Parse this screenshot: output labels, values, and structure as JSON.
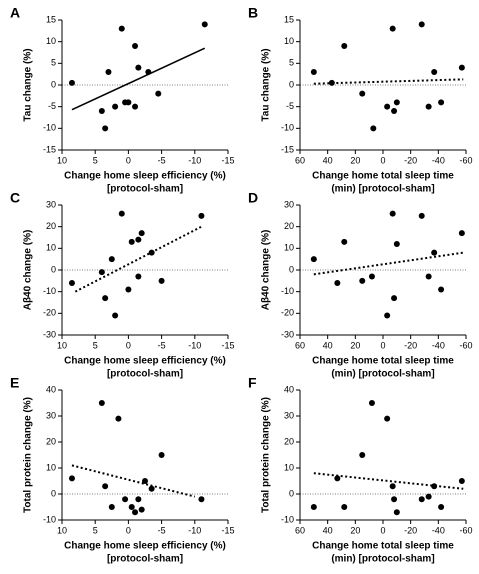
{
  "chart_data": [
    {
      "type": "scatter",
      "label": "A",
      "ylabel": "Tau change (%)",
      "xlabel": [
        "Change home sleep efficiency (%)",
        "[protocol-sham]"
      ],
      "xlim": [
        10,
        -15
      ],
      "xticks": [
        10,
        5,
        0,
        -5,
        -10,
        -15
      ],
      "ylim": [
        -15,
        15
      ],
      "yticks": [
        -15,
        -10,
        -5,
        0,
        5,
        10,
        15
      ],
      "color": "#000000",
      "x": [
        8.5,
        4,
        3.5,
        3,
        2,
        1,
        0.5,
        0,
        -1,
        -1,
        -1.5,
        -3,
        -4.5,
        -11.5
      ],
      "y": [
        0.5,
        -6,
        -10,
        3,
        -5,
        13,
        -4,
        -4,
        -5,
        9,
        4,
        3,
        -2,
        14
      ],
      "fit": {
        "x": [
          8.5,
          -11.5
        ],
        "y": [
          -5.7,
          8.5
        ],
        "dashed": false
      }
    },
    {
      "type": "scatter",
      "label": "B",
      "ylabel": "Tau change (%)",
      "xlabel": [
        "Change home total sleep time",
        "(min) [protocol-sham]"
      ],
      "xlim": [
        60,
        -60
      ],
      "xticks": [
        60,
        40,
        20,
        0,
        -20,
        -40,
        -60
      ],
      "ylim": [
        -15,
        15
      ],
      "yticks": [
        -15,
        -10,
        -5,
        0,
        5,
        10,
        15
      ],
      "color": "#000000",
      "x": [
        50,
        37,
        28,
        15,
        7,
        -3,
        -7,
        -8,
        -10,
        -28,
        -33,
        -37,
        -42,
        -57
      ],
      "y": [
        3,
        0.5,
        9,
        -2,
        -10,
        -5,
        13,
        -6,
        -4,
        14,
        -5,
        3,
        -4,
        4
      ],
      "fit": {
        "x": [
          50,
          -58
        ],
        "y": [
          0.3,
          1.3
        ],
        "dashed": true
      }
    },
    {
      "type": "scatter",
      "label": "C",
      "ylabel": "Aβ40 change (%)",
      "xlabel": [
        "Change home sleep efficiency (%)",
        "[protocol-sham]"
      ],
      "xlim": [
        10,
        -15
      ],
      "xticks": [
        10,
        5,
        0,
        -5,
        -10,
        -15
      ],
      "ylim": [
        -30,
        30
      ],
      "yticks": [
        -30,
        -20,
        -10,
        0,
        10,
        20,
        30
      ],
      "color": "#000000",
      "x": [
        8.5,
        4,
        3.5,
        2.5,
        2,
        1,
        0,
        -0.5,
        -1.5,
        -1.5,
        -2,
        -3.5,
        -5,
        -11
      ],
      "y": [
        -6,
        -1,
        -13,
        5,
        -21,
        26,
        -9,
        13,
        -3,
        14,
        17,
        8,
        -5,
        25
      ],
      "fit": {
        "x": [
          8,
          -11
        ],
        "y": [
          -10,
          20
        ],
        "dashed": true
      }
    },
    {
      "type": "scatter",
      "label": "D",
      "ylabel": "Aβ40 change (%)",
      "xlabel": [
        "Change home total sleep time",
        "(min) [protocol-sham]"
      ],
      "xlim": [
        60,
        -60
      ],
      "xticks": [
        60,
        40,
        20,
        0,
        -20,
        -40,
        -60
      ],
      "ylim": [
        -30,
        30
      ],
      "yticks": [
        -30,
        -20,
        -10,
        0,
        10,
        20,
        30
      ],
      "color": "#000000",
      "x": [
        50,
        33,
        28,
        15,
        8,
        -3,
        -7,
        -8,
        -10,
        -28,
        -33,
        -37,
        -42,
        -57
      ],
      "y": [
        5,
        -6,
        13,
        -5,
        -3,
        -21,
        26,
        -13,
        12,
        25,
        -3,
        8,
        -9,
        17
      ],
      "fit": {
        "x": [
          50,
          -58
        ],
        "y": [
          -2,
          8
        ],
        "dashed": true
      }
    },
    {
      "type": "scatter",
      "label": "E",
      "ylabel": "Total protein change (%)",
      "xlabel": [
        "Change home sleep efficiency (%)",
        "[protocol-sham]"
      ],
      "xlim": [
        10,
        -15
      ],
      "xticks": [
        10,
        5,
        0,
        -5,
        -10,
        -15
      ],
      "ylim": [
        -10,
        40
      ],
      "yticks": [
        -10,
        0,
        10,
        20,
        30,
        40
      ],
      "color": "#000000",
      "x": [
        8.5,
        4,
        3.5,
        2.5,
        1.5,
        0.5,
        -0.5,
        -1,
        -1.5,
        -2,
        -2.5,
        -3.5,
        -5,
        -11
      ],
      "y": [
        6,
        35,
        3,
        -5,
        29,
        -2,
        -5,
        -7,
        -2,
        -6,
        5,
        2,
        15,
        -2
      ],
      "fit": {
        "x": [
          8.5,
          -10
        ],
        "y": [
          11,
          -1
        ],
        "dashed": true
      }
    },
    {
      "type": "scatter",
      "label": "F",
      "ylabel": "Total protein change (%)",
      "xlabel": [
        "Change home total sleep time",
        "(min) [protocol-sham]"
      ],
      "xlim": [
        60,
        -60
      ],
      "xticks": [
        60,
        40,
        20,
        0,
        -20,
        -40,
        -60
      ],
      "ylim": [
        -10,
        40
      ],
      "yticks": [
        -10,
        0,
        10,
        20,
        30,
        40
      ],
      "color": "#000000",
      "x": [
        50,
        33,
        28,
        15,
        8,
        -3,
        -7,
        -8,
        -10,
        -28,
        -33,
        -37,
        -42,
        -57
      ],
      "y": [
        -5,
        6,
        -5,
        15,
        35,
        29,
        3,
        -2,
        -7,
        -2,
        -1,
        3,
        -5,
        5
      ],
      "fit": {
        "x": [
          50,
          -58
        ],
        "y": [
          8,
          2
        ],
        "dashed": true
      }
    }
  ]
}
